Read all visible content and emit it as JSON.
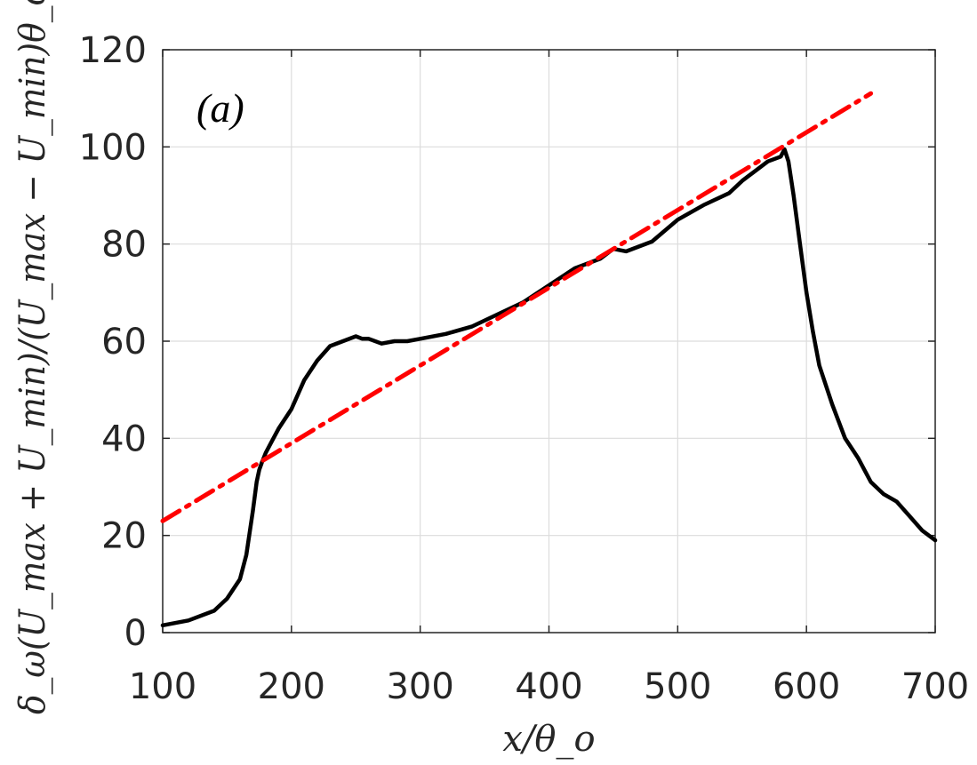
{
  "chart_data": {
    "type": "line",
    "panel_label": "(a)",
    "xlabel": "x/θ_o",
    "ylabel": "δ_ω(U_max + U_min)/(U_max − U_min)θ_o",
    "xlim": [
      100,
      700
    ],
    "ylim": [
      0,
      120
    ],
    "x_ticks": [
      "100",
      "200",
      "300",
      "400",
      "500",
      "600",
      "700"
    ],
    "y_ticks": [
      "0",
      "20",
      "40",
      "60",
      "80",
      "100",
      "120"
    ],
    "grid": true,
    "series": [
      {
        "style": "solid",
        "color": "#000000",
        "x": [
          100,
          120,
          140,
          150,
          160,
          165,
          170,
          173,
          175,
          177,
          180,
          185,
          190,
          200,
          210,
          220,
          230,
          240,
          250,
          255,
          260,
          270,
          280,
          290,
          300,
          320,
          340,
          360,
          380,
          400,
          420,
          440,
          450,
          460,
          480,
          500,
          520,
          540,
          550,
          555,
          560,
          570,
          580,
          583,
          586,
          590,
          595,
          600,
          605,
          610,
          620,
          630,
          640,
          650,
          660,
          670,
          680,
          690,
          700
        ],
        "y": [
          1.5,
          2.5,
          4.5,
          7,
          11,
          16,
          25,
          31,
          33.5,
          35,
          37,
          39.5,
          42,
          46,
          52,
          56,
          59,
          60,
          61,
          60.5,
          60.5,
          59.5,
          60,
          60,
          60.5,
          61.5,
          63,
          65.5,
          68,
          71.5,
          75,
          77,
          79,
          78.5,
          80.5,
          85,
          88,
          90.5,
          93,
          94,
          95,
          97,
          98,
          99.5,
          97,
          90,
          80,
          70,
          62,
          55,
          47,
          40,
          36,
          31,
          28.5,
          27,
          24,
          21,
          19
        ]
      },
      {
        "style": "dash-dot",
        "color": "#ff0000",
        "x": [
          100,
          650
        ],
        "y": [
          23,
          111
        ]
      }
    ]
  }
}
